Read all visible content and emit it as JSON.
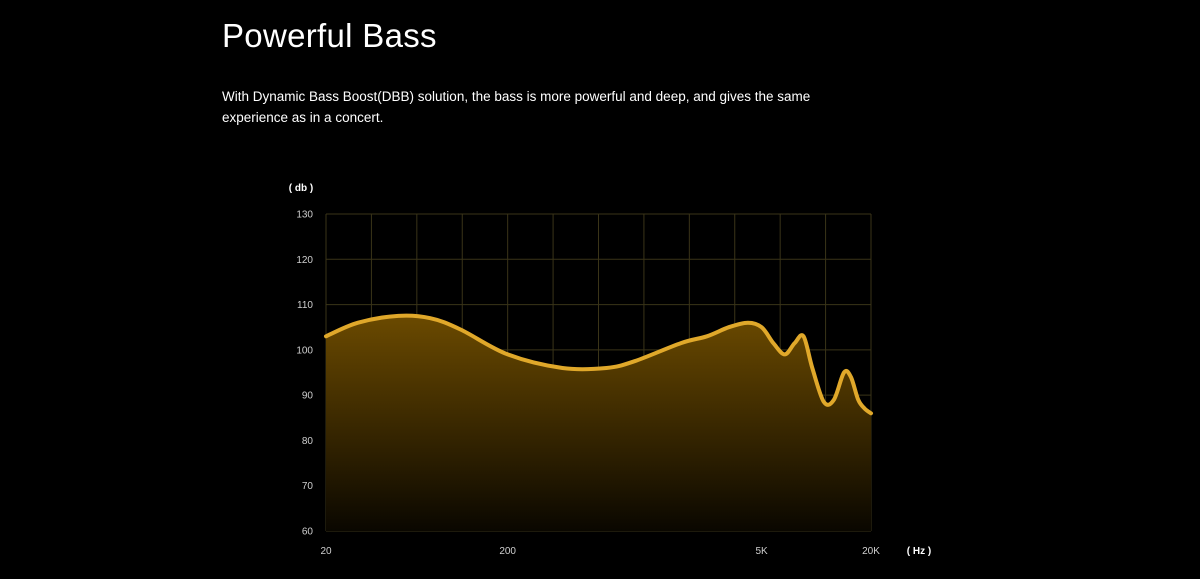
{
  "header": {
    "title": "Powerful Bass",
    "description": "With Dynamic Bass Boost(DBB) solution, the bass is more powerful and deep, and gives the same experience as in a concert."
  },
  "colors": {
    "background": "#000000",
    "curve": "#e0a82a",
    "fill_top": "#6b4a00",
    "fill_bottom": "#0a0700",
    "grid": "#3a3418"
  },
  "chart_data": {
    "type": "area",
    "y_unit_label": "( db )",
    "x_unit_label": "( Hz )",
    "x_scale": "log",
    "xlim": [
      20,
      20000
    ],
    "ylim": [
      60,
      130
    ],
    "y_ticks": [
      60,
      70,
      80,
      90,
      100,
      110,
      120,
      130
    ],
    "x_ticks": [
      {
        "value": 20,
        "label": "20"
      },
      {
        "value": 200,
        "label": "200"
      },
      {
        "value": 5000,
        "label": "5K"
      },
      {
        "value": 20000,
        "label": "20K"
      }
    ],
    "grid": true,
    "series": [
      {
        "x": [
          20,
          30,
          50,
          75,
          110,
          200,
          400,
          700,
          1000,
          1800,
          2500,
          3300,
          4200,
          5000,
          5800,
          6700,
          7600,
          8500,
          9500,
          11000,
          12500,
          14200,
          15500,
          17000,
          18500,
          20000
        ],
        "y": [
          103,
          106,
          107.5,
          107,
          104.5,
          99,
          96,
          96,
          97.5,
          101.5,
          103,
          105,
          106,
          105,
          101.5,
          99,
          101.5,
          103,
          96,
          88.5,
          89,
          95,
          94,
          89,
          87,
          86
        ]
      }
    ]
  }
}
